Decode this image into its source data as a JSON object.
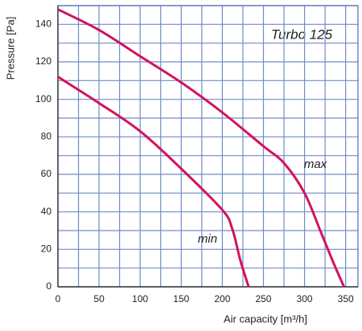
{
  "chart_data": {
    "type": "line",
    "title": "Turbo 125",
    "x_label": "Air capacity [m³/h]",
    "y_label": "Pressure [Pa]",
    "xlim": [
      0,
      365
    ],
    "ylim": [
      0,
      150
    ],
    "xticks": [
      0,
      50,
      100,
      150,
      200,
      250,
      300,
      350
    ],
    "yticks": [
      0,
      20,
      40,
      60,
      80,
      100,
      120,
      140
    ],
    "x_minor_grid": [
      25,
      75,
      125,
      175,
      225,
      275,
      325
    ],
    "y_minor_grid": [
      10,
      30,
      50,
      70,
      90,
      110,
      130,
      150
    ],
    "grid": true,
    "grid_color": "#6f8cc8",
    "series": [
      {
        "name": "max",
        "color": "#d3125d",
        "x": [
          0,
          50,
          100,
          150,
          200,
          250,
          275,
          300,
          320,
          335,
          348
        ],
        "values": [
          148,
          137,
          123,
          109,
          93,
          75,
          66,
          50,
          29,
          13,
          0
        ]
      },
      {
        "name": "min",
        "color": "#d3125d",
        "x": [
          0,
          50,
          100,
          150,
          200,
          212,
          222,
          232
        ],
        "values": [
          112,
          98,
          83,
          63,
          41,
          31,
          14,
          0
        ]
      }
    ]
  }
}
